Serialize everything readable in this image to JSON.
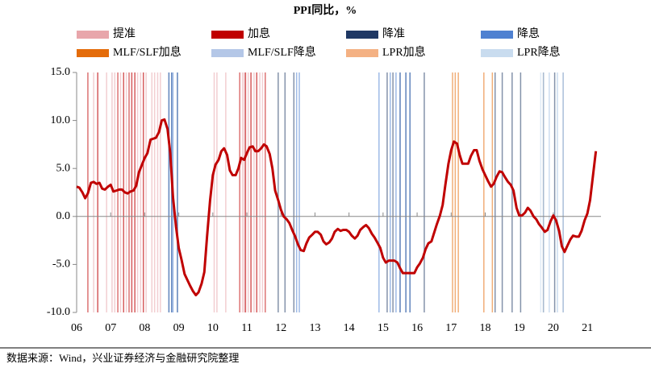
{
  "chart_data": {
    "type": "line",
    "title": "PPI同比，%",
    "note": "数据来源：Wind，兴业证券经济与金融研究院整理",
    "color": "#c00000",
    "xlim": [
      2006,
      2021.4
    ],
    "ylim": [
      -10,
      15
    ],
    "xticks": [
      {
        "value": 2006,
        "label": "06"
      },
      {
        "value": 2007,
        "label": "07"
      },
      {
        "value": 2008,
        "label": "08"
      },
      {
        "value": 2009,
        "label": "09"
      },
      {
        "value": 2010,
        "label": "10"
      },
      {
        "value": 2011,
        "label": "11"
      },
      {
        "value": 2012,
        "label": "12"
      },
      {
        "value": 2013,
        "label": "13"
      },
      {
        "value": 2014,
        "label": "14"
      },
      {
        "value": 2015,
        "label": "15"
      },
      {
        "value": 2016,
        "label": "16"
      },
      {
        "value": 2017,
        "label": "17"
      },
      {
        "value": 2018,
        "label": "18"
      },
      {
        "value": 2019,
        "label": "19"
      },
      {
        "value": 2020,
        "label": "20"
      },
      {
        "value": 2021,
        "label": "21"
      }
    ],
    "yticks": [
      {
        "value": 15,
        "label": "15.0"
      },
      {
        "value": 10,
        "label": "10.0"
      },
      {
        "value": 5,
        "label": "5.0"
      },
      {
        "value": 0,
        "label": "0.0"
      },
      {
        "value": -5,
        "label": "-5.0"
      },
      {
        "value": -10,
        "label": "-10.0"
      }
    ],
    "x": [
      2006.0,
      2006.08,
      2006.17,
      2006.25,
      2006.33,
      2006.42,
      2006.5,
      2006.58,
      2006.67,
      2006.75,
      2006.83,
      2006.92,
      2007.0,
      2007.08,
      2007.17,
      2007.25,
      2007.33,
      2007.42,
      2007.5,
      2007.58,
      2007.67,
      2007.75,
      2007.83,
      2007.92,
      2008.0,
      2008.08,
      2008.17,
      2008.25,
      2008.33,
      2008.42,
      2008.5,
      2008.58,
      2008.67,
      2008.75,
      2008.83,
      2008.92,
      2009.0,
      2009.08,
      2009.17,
      2009.25,
      2009.33,
      2009.42,
      2009.5,
      2009.58,
      2009.67,
      2009.75,
      2009.83,
      2009.92,
      2010.0,
      2010.08,
      2010.17,
      2010.25,
      2010.33,
      2010.42,
      2010.5,
      2010.58,
      2010.67,
      2010.75,
      2010.83,
      2010.92,
      2011.0,
      2011.08,
      2011.17,
      2011.25,
      2011.33,
      2011.42,
      2011.5,
      2011.58,
      2011.67,
      2011.75,
      2011.83,
      2011.92,
      2012.0,
      2012.08,
      2012.17,
      2012.25,
      2012.33,
      2012.42,
      2012.5,
      2012.58,
      2012.67,
      2012.75,
      2012.83,
      2012.92,
      2013.0,
      2013.08,
      2013.17,
      2013.25,
      2013.33,
      2013.42,
      2013.5,
      2013.58,
      2013.67,
      2013.75,
      2013.83,
      2013.92,
      2014.0,
      2014.08,
      2014.17,
      2014.25,
      2014.33,
      2014.42,
      2014.5,
      2014.58,
      2014.67,
      2014.75,
      2014.83,
      2014.92,
      2015.0,
      2015.08,
      2015.17,
      2015.25,
      2015.33,
      2015.42,
      2015.5,
      2015.58,
      2015.67,
      2015.75,
      2015.83,
      2015.92,
      2016.0,
      2016.08,
      2016.17,
      2016.25,
      2016.33,
      2016.42,
      2016.5,
      2016.58,
      2016.67,
      2016.75,
      2016.83,
      2016.92,
      2017.0,
      2017.08,
      2017.17,
      2017.25,
      2017.33,
      2017.42,
      2017.5,
      2017.58,
      2017.67,
      2017.75,
      2017.83,
      2017.92,
      2018.0,
      2018.08,
      2018.17,
      2018.25,
      2018.33,
      2018.42,
      2018.5,
      2018.58,
      2018.67,
      2018.75,
      2018.83,
      2018.92,
      2019.0,
      2019.08,
      2019.17,
      2019.25,
      2019.33,
      2019.42,
      2019.5,
      2019.58,
      2019.67,
      2019.75,
      2019.83,
      2019.92,
      2020.0,
      2020.08,
      2020.17,
      2020.25,
      2020.33,
      2020.42,
      2020.5,
      2020.58,
      2020.67,
      2020.75,
      2020.83,
      2020.92,
      2021.0,
      2021.08,
      2021.17,
      2021.25
    ],
    "values": [
      3.1,
      3.0,
      2.5,
      1.9,
      2.4,
      3.5,
      3.6,
      3.4,
      3.5,
      2.9,
      2.8,
      3.1,
      3.3,
      2.6,
      2.7,
      2.8,
      2.8,
      2.5,
      2.4,
      2.6,
      2.7,
      3.2,
      4.6,
      5.4,
      6.1,
      6.6,
      8.0,
      8.1,
      8.2,
      8.8,
      10.0,
      10.1,
      9.1,
      6.6,
      2.0,
      -1.1,
      -3.3,
      -4.5,
      -6.0,
      -6.6,
      -7.2,
      -7.8,
      -8.2,
      -7.9,
      -7.0,
      -5.8,
      -2.1,
      1.7,
      4.3,
      5.4,
      5.9,
      6.8,
      7.1,
      6.4,
      4.8,
      4.3,
      4.3,
      5.0,
      6.1,
      5.9,
      6.6,
      7.2,
      7.3,
      6.8,
      6.8,
      7.1,
      7.5,
      7.3,
      6.5,
      5.0,
      2.7,
      1.7,
      0.7,
      0.0,
      -0.3,
      -0.7,
      -1.4,
      -2.1,
      -2.9,
      -3.5,
      -3.6,
      -2.8,
      -2.2,
      -1.9,
      -1.6,
      -1.6,
      -1.9,
      -2.6,
      -2.9,
      -2.7,
      -2.3,
      -1.6,
      -1.3,
      -1.5,
      -1.4,
      -1.4,
      -1.6,
      -2.0,
      -2.3,
      -2.0,
      -1.4,
      -1.1,
      -0.9,
      -1.2,
      -1.8,
      -2.2,
      -2.7,
      -3.3,
      -4.3,
      -4.8,
      -4.6,
      -4.6,
      -4.6,
      -4.8,
      -5.4,
      -5.9,
      -5.9,
      -5.9,
      -5.9,
      -5.9,
      -5.3,
      -4.9,
      -4.3,
      -3.4,
      -2.8,
      -2.6,
      -1.7,
      -0.8,
      0.1,
      1.2,
      3.3,
      5.5,
      6.9,
      7.8,
      7.6,
      6.4,
      5.5,
      5.5,
      5.5,
      6.3,
      6.9,
      6.9,
      5.8,
      4.9,
      4.3,
      3.7,
      3.1,
      3.4,
      4.1,
      4.7,
      4.6,
      4.1,
      3.6,
      3.3,
      2.7,
      0.9,
      0.1,
      0.1,
      0.4,
      0.9,
      0.6,
      0.0,
      -0.3,
      -0.8,
      -1.2,
      -1.6,
      -1.4,
      -0.5,
      0.1,
      -0.4,
      -1.5,
      -3.1,
      -3.7,
      -3.0,
      -2.4,
      -2.0,
      -2.1,
      -2.1,
      -1.5,
      -0.4,
      0.3,
      1.7,
      4.4,
      6.8
    ],
    "events": [
      {
        "name": "提准",
        "color": "#e8a6ab",
        "x": [
          2006.5,
          2006.62,
          2006.88,
          2007.04,
          2007.12,
          2007.29,
          2007.38,
          2007.46,
          2007.62,
          2007.71,
          2007.79,
          2007.88,
          2007.96,
          2008.04,
          2008.21,
          2008.29,
          2008.38,
          2008.46,
          2010.04,
          2010.12,
          2010.38,
          2010.87,
          2010.92,
          2010.96,
          2011.04,
          2011.12,
          2011.21,
          2011.29,
          2011.38,
          2011.46
        ]
      },
      {
        "name": "加息",
        "color": "#c00000",
        "x": [
          2006.33,
          2006.62,
          2007.21,
          2007.38,
          2007.54,
          2007.62,
          2007.71,
          2007.96,
          2010.79,
          2010.96,
          2011.12,
          2011.29,
          2011.54
        ]
      },
      {
        "name": "降准",
        "color": "#1f3864",
        "x": [
          2008.71,
          2008.79,
          2008.96,
          2011.92,
          2012.12,
          2012.38,
          2015.12,
          2015.29,
          2015.5,
          2015.67,
          2015.79,
          2016.21,
          2018.29,
          2018.5,
          2018.79,
          2019.04,
          2019.71,
          2020.04,
          2020.29
        ]
      },
      {
        "name": "降息",
        "color": "#4f81d1",
        "x": [
          2008.71,
          2008.79,
          2008.83,
          2008.96,
          2012.46,
          2012.54,
          2014.88,
          2015.21,
          2015.38,
          2015.5,
          2015.67,
          2015.79
        ]
      },
      {
        "name": "MLF/SLF加息",
        "color": "#e46c0a",
        "x": [
          2017.04,
          2017.12,
          2017.21,
          2017.96,
          2018.21
        ]
      },
      {
        "name": "MLF/SLF降息",
        "color": "#b4c7e7",
        "x": [
          2019.88,
          2020.12,
          2020.29
        ]
      },
      {
        "name": "LPR加息",
        "color": "#f4b183",
        "x": []
      },
      {
        "name": "LPR降息",
        "color": "#c9dcef",
        "x": [
          2019.63,
          2019.71,
          2019.88,
          2020.12,
          2020.29
        ]
      }
    ]
  }
}
